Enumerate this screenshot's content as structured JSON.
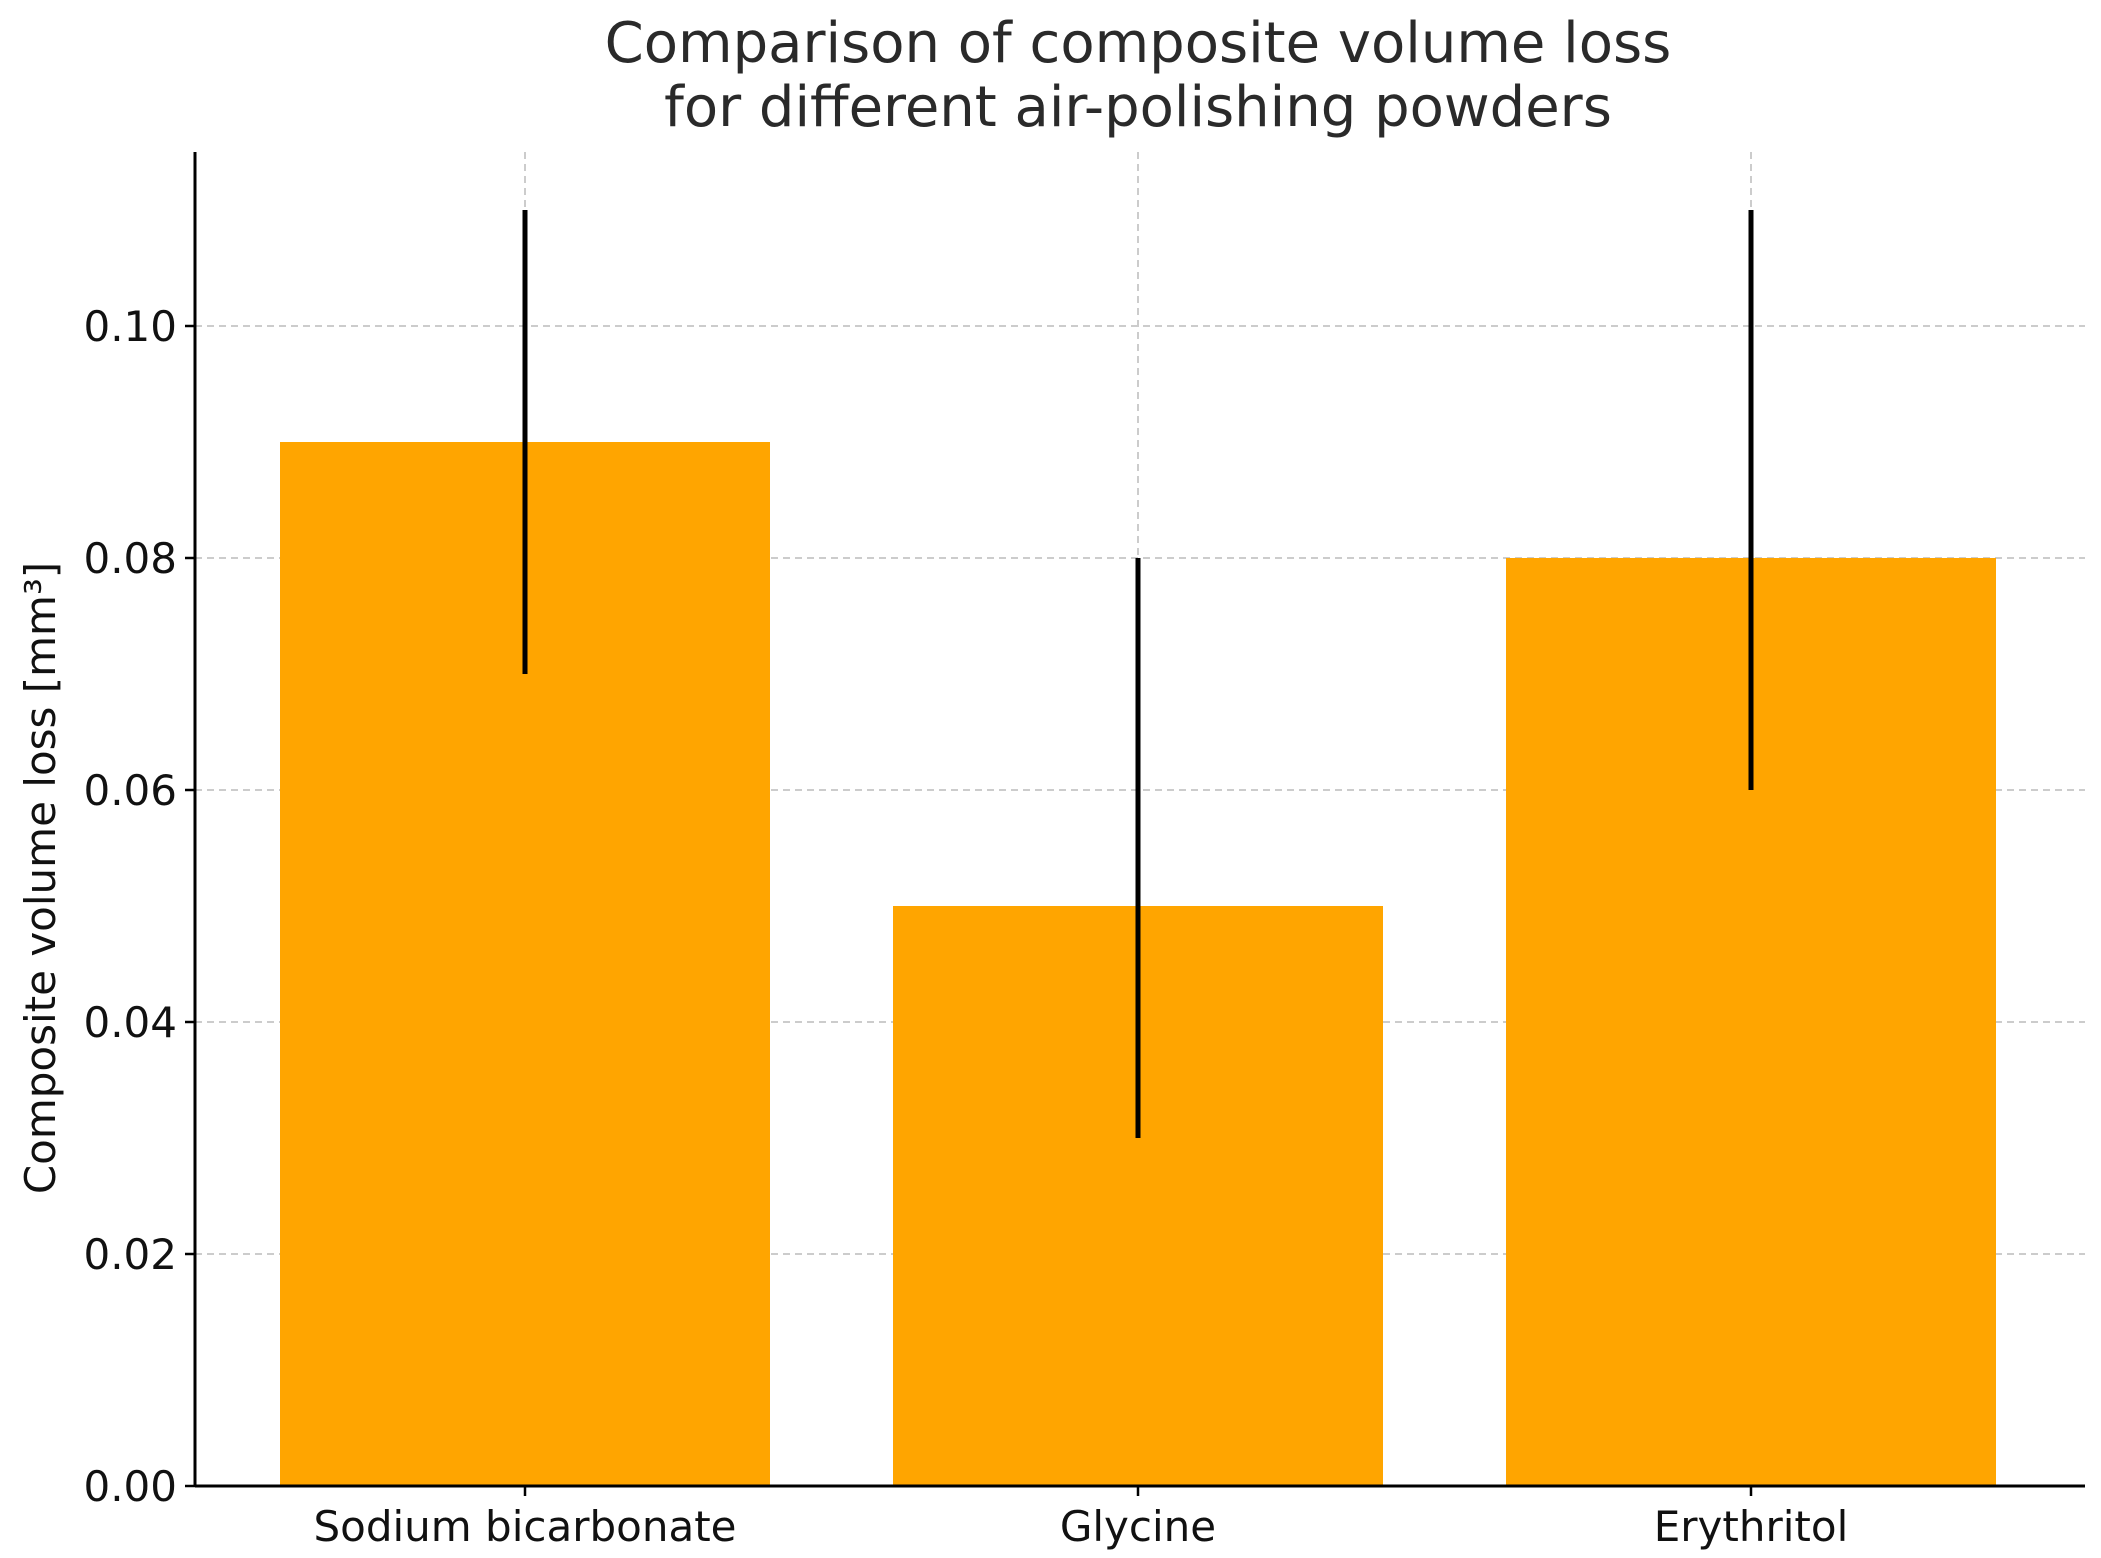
{
  "chart_data": {
    "type": "bar",
    "title_lines": [
      "Comparison of composite volume loss",
      "for different air-polishing powders"
    ],
    "xlabel": "",
    "ylabel": "Composite volume loss [mm³]",
    "categories": [
      "Sodium bicarbonate",
      "Glycine",
      "Erythritol"
    ],
    "values": [
      0.09,
      0.05,
      0.08
    ],
    "error_low": [
      0.07,
      0.03,
      0.06
    ],
    "error_high": [
      0.11,
      0.08,
      0.11
    ],
    "ylim": [
      0,
      0.115
    ],
    "yticks": [
      0.0,
      0.02,
      0.04,
      0.06,
      0.08,
      0.1
    ],
    "ytick_labels": [
      "0.00",
      "0.02",
      "0.04",
      "0.06",
      "0.08",
      "0.10"
    ],
    "grid": true,
    "legend": "none",
    "colors": {
      "bar": "#FFA500",
      "error_bar": "#000000",
      "grid": "#cccccc",
      "axis": "#000000"
    }
  }
}
